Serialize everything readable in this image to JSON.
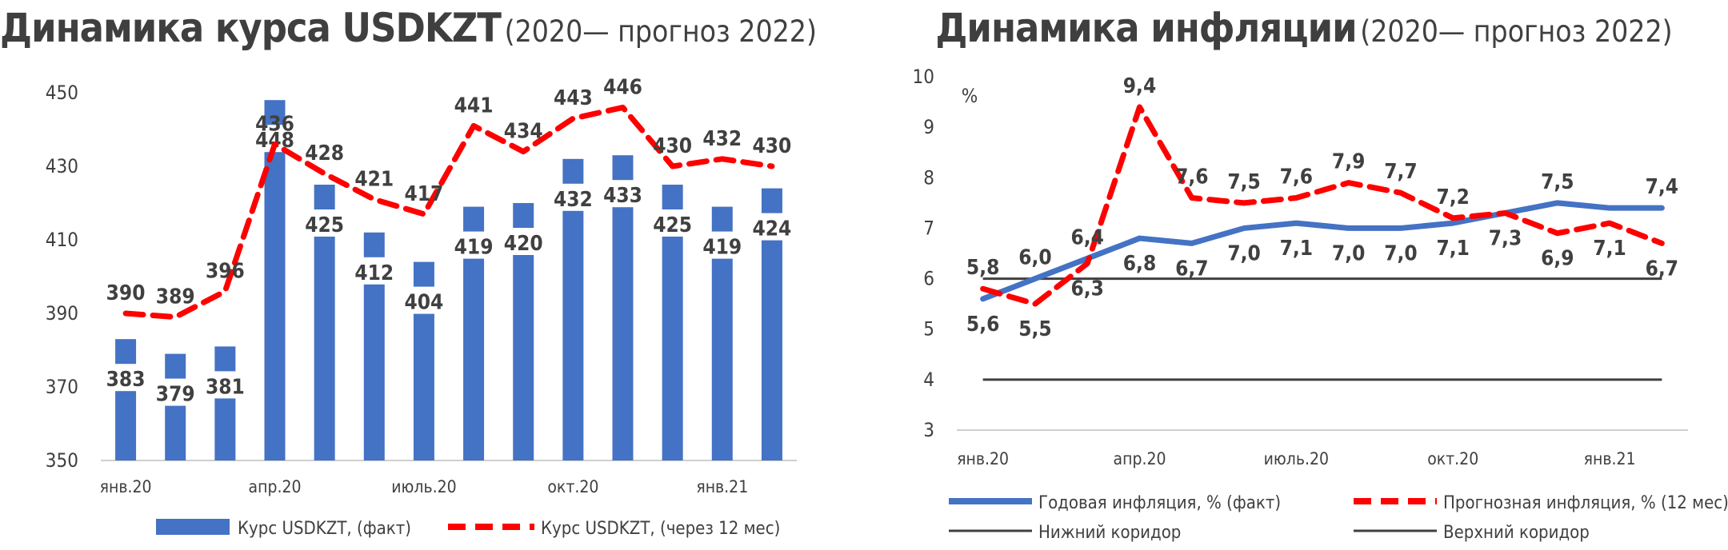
{
  "left_chart": {
    "title_main": "Динамика курса USDKZT",
    "title_sub": "(2020— прогноз 2022)",
    "legend_bar": "Курс USDKZT, (факт)",
    "legend_line": "Курс USDKZT, (через 12 мес)",
    "bar_color": "#4472c4",
    "line_color": "#ff0000"
  },
  "right_chart": {
    "title_main": "Динамика инфляции",
    "title_sub": "(2020— прогноз 2022)",
    "unit_label": "%",
    "legend_actual": "Годовая инфляция, % (факт)",
    "legend_forecast": "Прогнозная инфляция, % (12 мес)",
    "legend_lower": "Нижний коридор",
    "legend_upper": "Верхний коридор",
    "actual_color": "#4472c4",
    "forecast_color": "#ff0000",
    "corridor_color": "#404040"
  },
  "chart_data": [
    {
      "type": "bar",
      "title": "Динамика курса USDKZT (2020— прогноз 2022)",
      "x_tick_labels": [
        "янв.20",
        "апр.20",
        "июль.20",
        "окт.20",
        "янв.21"
      ],
      "x_tick_label_positions": [
        0,
        3,
        6,
        9,
        12
      ],
      "ylim": [
        350,
        450
      ],
      "yticks": [
        350,
        370,
        390,
        410,
        430,
        450
      ],
      "grid": false,
      "legend_position": "bottom",
      "series": [
        {
          "name": "Курс USDKZT, (факт)",
          "kind": "bar",
          "values": [
            383,
            379,
            381,
            448,
            425,
            412,
            404,
            419,
            420,
            432,
            433,
            425,
            419,
            424
          ]
        },
        {
          "name": "Курс USDKZT, (через 12 мес)",
          "kind": "line",
          "style": "dashed",
          "values": [
            390,
            389,
            396,
            436,
            428,
            421,
            417,
            441,
            434,
            443,
            446,
            430,
            432,
            430
          ]
        }
      ]
    },
    {
      "type": "line",
      "title": "Динамика инфляции (2020— прогноз 2022)",
      "x_tick_labels": [
        "янв.20",
        "апр.20",
        "июль.20",
        "окт.20",
        "янв.21"
      ],
      "x_tick_label_positions": [
        0,
        3,
        6,
        9,
        12
      ],
      "ylim": [
        3,
        10
      ],
      "yticks": [
        3,
        4,
        5,
        6,
        7,
        8,
        9,
        10
      ],
      "ylabel": "%",
      "grid": false,
      "legend_position": "bottom",
      "series": [
        {
          "name": "Годовая инфляция, % (факт)",
          "style": "solid",
          "values": [
            5.6,
            6.0,
            6.4,
            6.8,
            6.7,
            7.0,
            7.1,
            7.0,
            7.0,
            7.1,
            7.3,
            7.5,
            7.4,
            7.4
          ],
          "labels": [
            "5,6",
            "6,0",
            "6,4",
            "6,8",
            "6,7",
            "7,0",
            "7,1",
            "7,0",
            "7,0",
            "7,1",
            "7,3",
            "7,5",
            null,
            "7,4"
          ]
        },
        {
          "name": "Прогнозная инфляция, % (12 мес)",
          "style": "dashed",
          "values": [
            5.8,
            5.5,
            6.3,
            9.4,
            7.6,
            7.5,
            7.6,
            7.9,
            7.7,
            7.2,
            7.3,
            6.9,
            7.1,
            6.7
          ],
          "labels": [
            "5,8",
            "5,5",
            "6,3",
            "9,4",
            "7,6",
            "7,5",
            "7,6",
            "7,9",
            "7,7",
            "7,2",
            null,
            "6,9",
            "7,1",
            "6,7"
          ]
        },
        {
          "name": "Нижний коридор",
          "style": "solid",
          "values": [
            4,
            4,
            4,
            4,
            4,
            4,
            4,
            4,
            4,
            4,
            4,
            4,
            4,
            4
          ]
        },
        {
          "name": "Верхний коридор",
          "style": "solid",
          "values": [
            6,
            6,
            6,
            6,
            6,
            6,
            6,
            6,
            6,
            6,
            6,
            6,
            6,
            6
          ]
        }
      ]
    }
  ]
}
